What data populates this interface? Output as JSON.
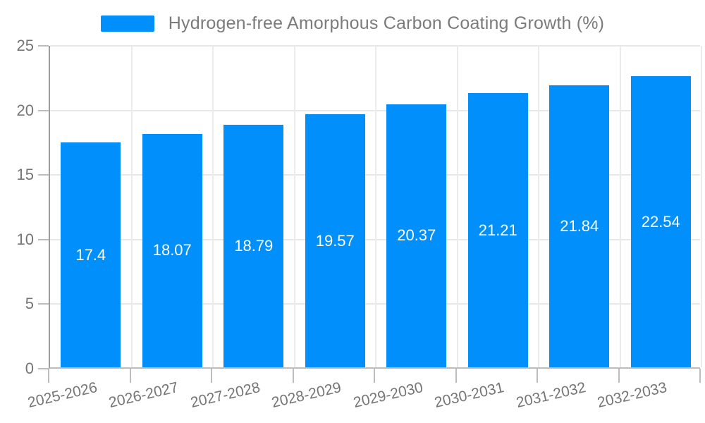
{
  "legend": {
    "label": "Hydrogen-free Amorphous Carbon Coating Growth (%)",
    "swatch_color": "#008FFB"
  },
  "chart_data": {
    "type": "bar",
    "title": "Hydrogen-free Amorphous Carbon Coating Growth (%)",
    "categories": [
      "2025-2026",
      "2026-2027",
      "2027-2028",
      "2028-2029",
      "2029-2030",
      "2030-2031",
      "2031-2032",
      "2032-2033"
    ],
    "values": [
      17.4,
      18.07,
      18.79,
      19.57,
      20.37,
      21.21,
      21.84,
      22.54
    ],
    "value_labels": [
      "17.4",
      "18.07",
      "18.79",
      "19.57",
      "20.37",
      "21.21",
      "21.84",
      "22.54"
    ],
    "xlabel": "",
    "ylabel": "",
    "y_ticks": [
      0,
      5,
      10,
      15,
      20,
      25
    ],
    "ylim": [
      0,
      25
    ],
    "grid": true,
    "legend_position": "top",
    "x_label_rotation_deg": -13,
    "colors": {
      "bar": "#008FFB",
      "bar_label_text": "#FFFFFF",
      "axis_text": "#757575",
      "legend_text": "#7B7B7B",
      "axis_line": "#9E9E9E",
      "grid_line": "#E7E7E7",
      "background": "#FFFFFF"
    }
  }
}
